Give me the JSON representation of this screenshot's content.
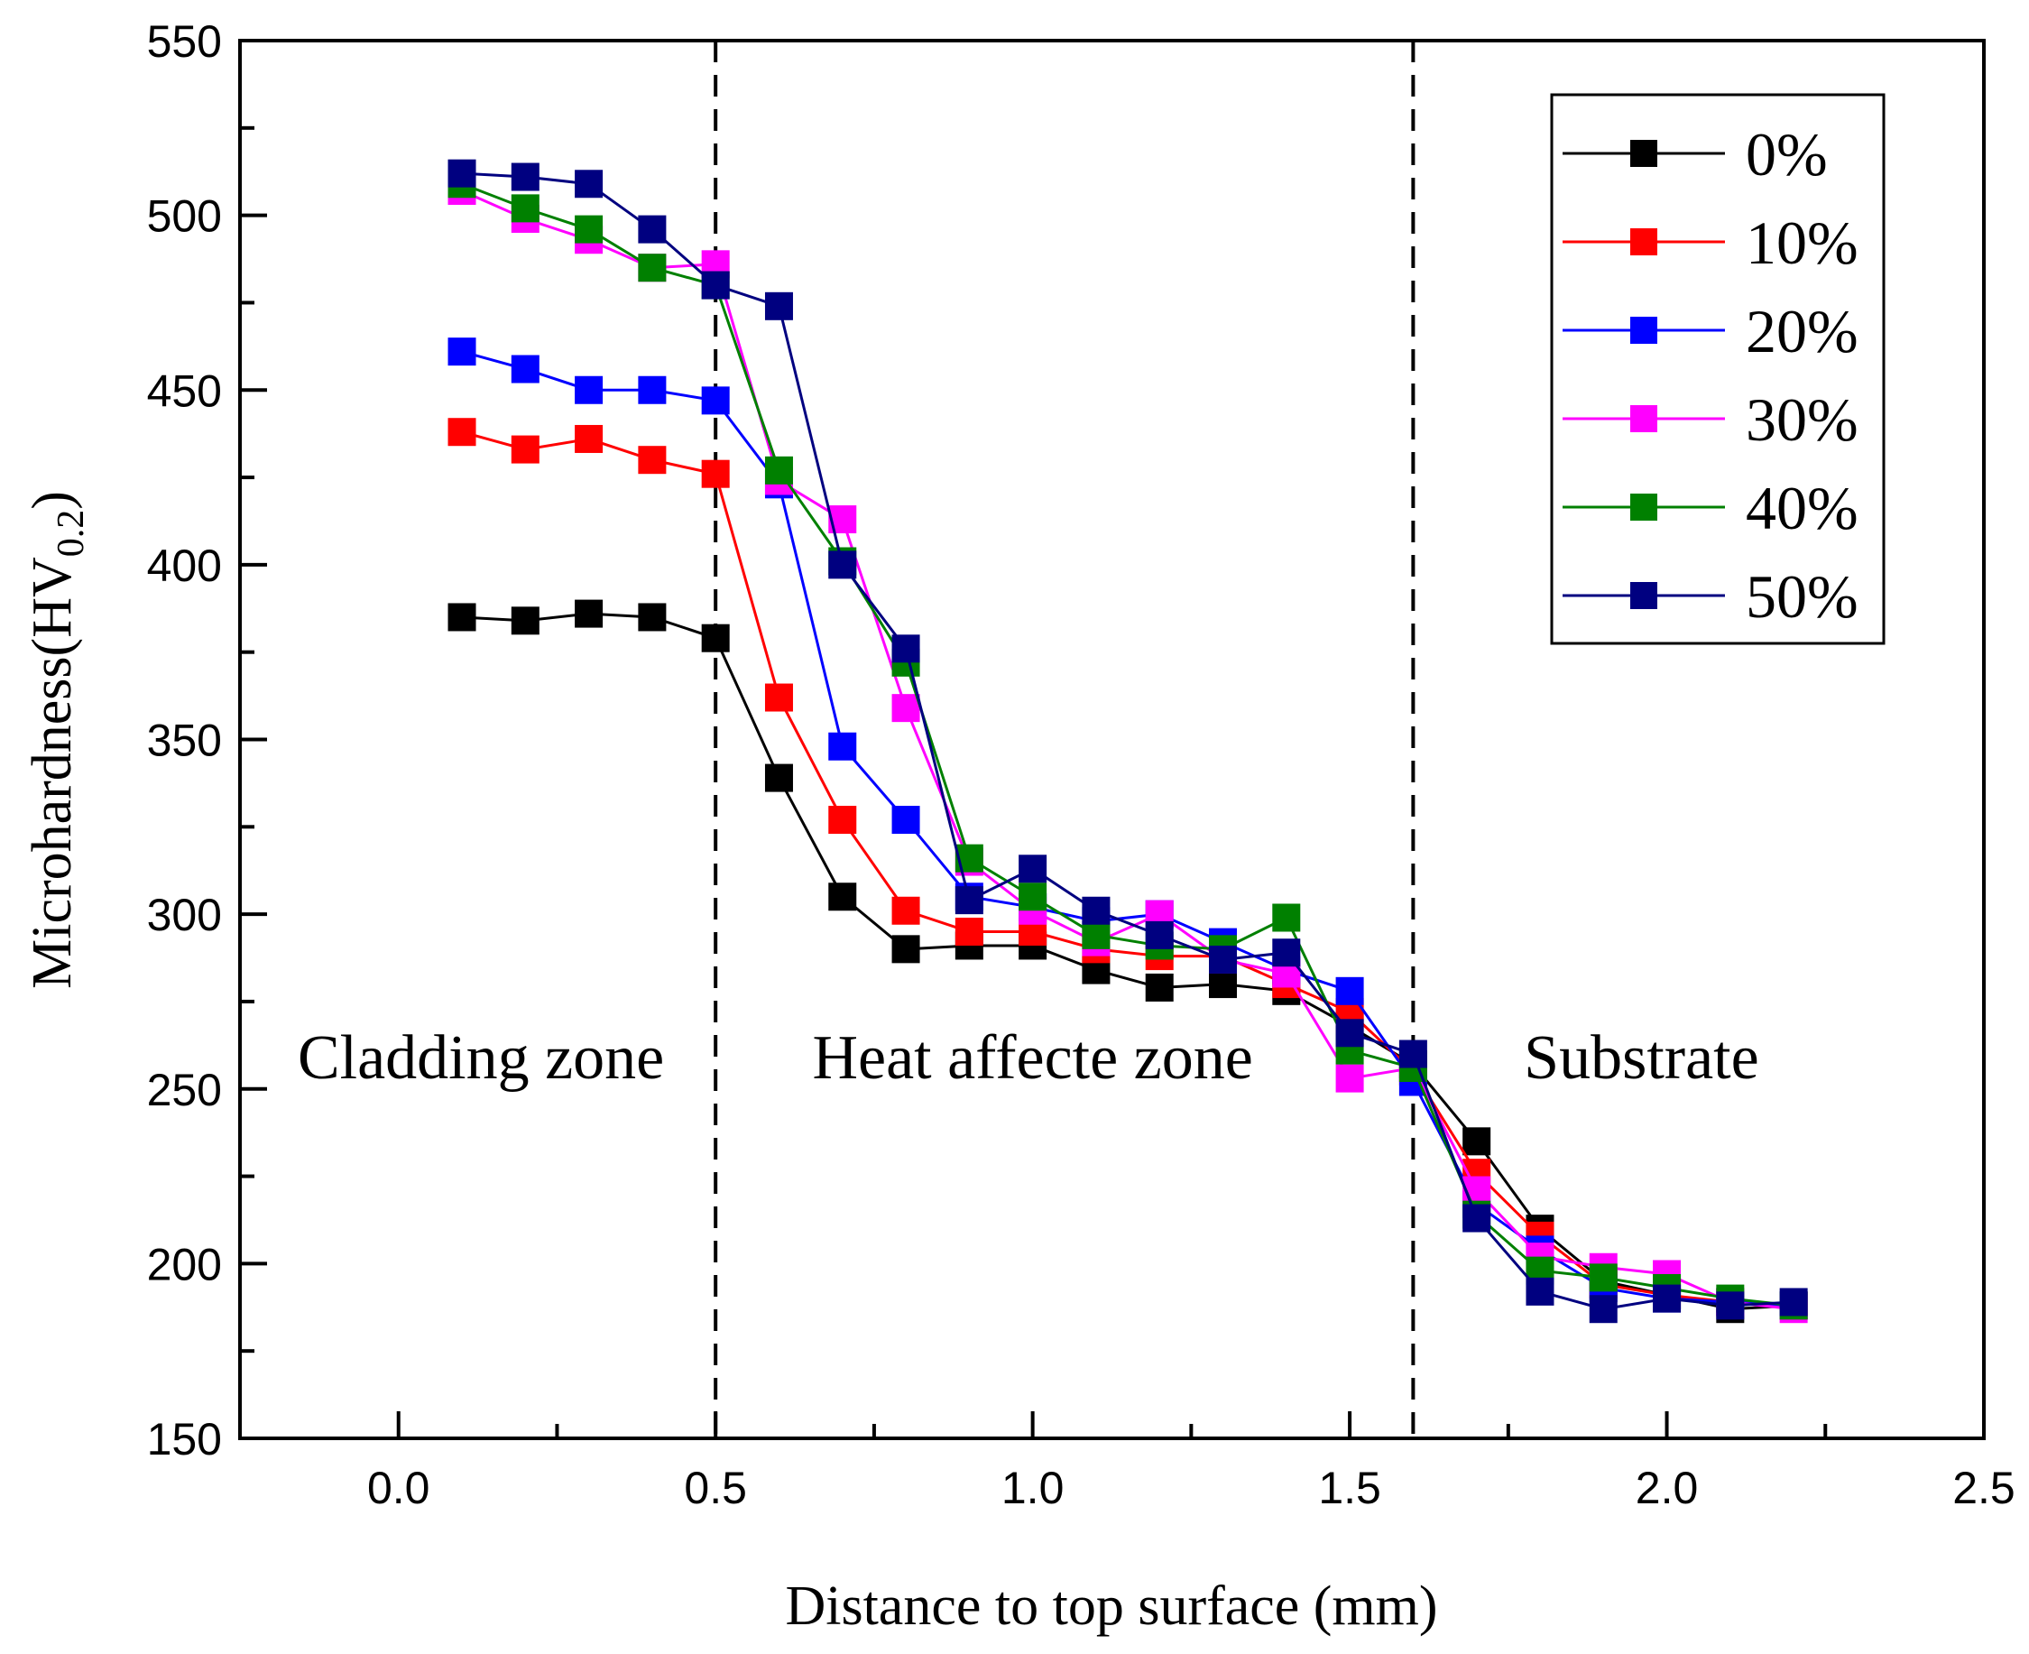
{
  "chart_data": {
    "type": "line",
    "xlabel": "Distance to top surface (mm)",
    "ylabel": {
      "main": "Microhardness(HV",
      "sub": "0.2",
      "close": ")"
    },
    "xlim": [
      -0.25,
      2.5
    ],
    "ylim": [
      150,
      550
    ],
    "xticks": [
      "0.0",
      "0.5",
      "1.0",
      "1.5",
      "2.0",
      "2.5"
    ],
    "xtick_values": [
      0.0,
      0.5,
      1.0,
      1.5,
      2.0,
      2.5
    ],
    "yticks": [
      "150",
      "200",
      "250",
      "300",
      "350",
      "400",
      "450",
      "500",
      "550"
    ],
    "ytick_values": [
      150,
      200,
      250,
      300,
      350,
      400,
      450,
      500,
      550
    ],
    "boundaries": [
      0.5,
      1.6
    ],
    "zones": [
      {
        "label": "Cladding zone",
        "x": 0.13
      },
      {
        "label": "Heat affecte zone",
        "x": 1.0
      },
      {
        "label": "Substrate",
        "x": 1.96
      }
    ],
    "zone_label_y": 253,
    "legend_position": "top-right",
    "x": [
      0.1,
      0.2,
      0.3,
      0.4,
      0.5,
      0.6,
      0.7,
      0.8,
      0.9,
      1.0,
      1.1,
      1.2,
      1.3,
      1.4,
      1.5,
      1.6,
      1.7,
      1.8,
      1.9,
      2.0,
      2.1,
      2.2
    ],
    "series": [
      {
        "name": "0%",
        "color": "#000000",
        "values": [
          385,
          384,
          386,
          385,
          379,
          339,
          305,
          290,
          291,
          291,
          284,
          279,
          280,
          278,
          268,
          257,
          235,
          210,
          195,
          191,
          187,
          188
        ]
      },
      {
        "name": "10%",
        "color": "#ff0000",
        "values": [
          438,
          433,
          436,
          430,
          426,
          362,
          327,
          301,
          295,
          295,
          290,
          288,
          288,
          280,
          272,
          255,
          226,
          208,
          194,
          191,
          189,
          188
        ]
      },
      {
        "name": "20%",
        "color": "#0000ff",
        "values": [
          461,
          456,
          450,
          450,
          447,
          423,
          348,
          327,
          305,
          302,
          298,
          300,
          292,
          284,
          278,
          252,
          217,
          204,
          193,
          190,
          189,
          188
        ]
      },
      {
        "name": "30%",
        "color": "#ff00ff",
        "values": [
          507,
          499,
          493,
          485,
          486,
          424,
          413,
          359,
          315,
          301,
          292,
          300,
          287,
          283,
          253,
          256,
          221,
          202,
          199,
          197,
          189,
          187
        ]
      },
      {
        "name": "40%",
        "color": "#008000",
        "values": [
          509,
          502,
          496,
          485,
          480,
          427,
          401,
          372,
          316,
          305,
          294,
          291,
          290,
          299,
          261,
          256,
          214,
          198,
          196,
          193,
          190,
          188
        ]
      },
      {
        "name": "50%",
        "color": "#000080",
        "values": [
          512,
          511,
          509,
          496,
          480,
          474,
          400,
          376,
          304,
          313,
          301,
          294,
          287,
          289,
          266,
          260,
          213,
          192,
          187,
          190,
          188,
          189
        ]
      }
    ]
  }
}
